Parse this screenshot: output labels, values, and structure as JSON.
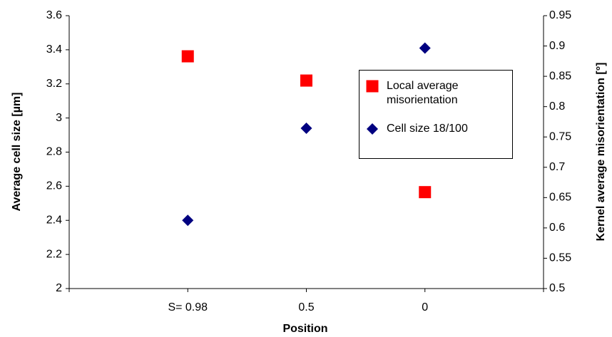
{
  "chart_data": {
    "type": "scatter",
    "x_label": "Position",
    "y_label": "Average cell size [µm]",
    "y2_label": "Kernel average  misorientation [°]",
    "categories": [
      "S= 0.98",
      "0.5",
      "0"
    ],
    "series": [
      {
        "name": "Local average misorientation",
        "color": "#ff0000",
        "marker": "square",
        "axis": "y2",
        "values": [
          0.883,
          0.843,
          0.659
        ]
      },
      {
        "name": "Cell size 18/100",
        "color": "#000080",
        "marker": "diamond",
        "axis": "y",
        "values": [
          2.4,
          2.94,
          3.41
        ]
      }
    ],
    "ylim": [
      2,
      3.6
    ],
    "yticks": [
      2,
      2.2,
      2.4,
      2.6,
      2.8,
      3,
      3.2,
      3.4,
      3.6
    ],
    "y2lim": [
      0.5,
      0.95
    ],
    "y2ticks": [
      0.5,
      0.55,
      0.6,
      0.65,
      0.7,
      0.75,
      0.8,
      0.85,
      0.9,
      0.95
    ]
  }
}
